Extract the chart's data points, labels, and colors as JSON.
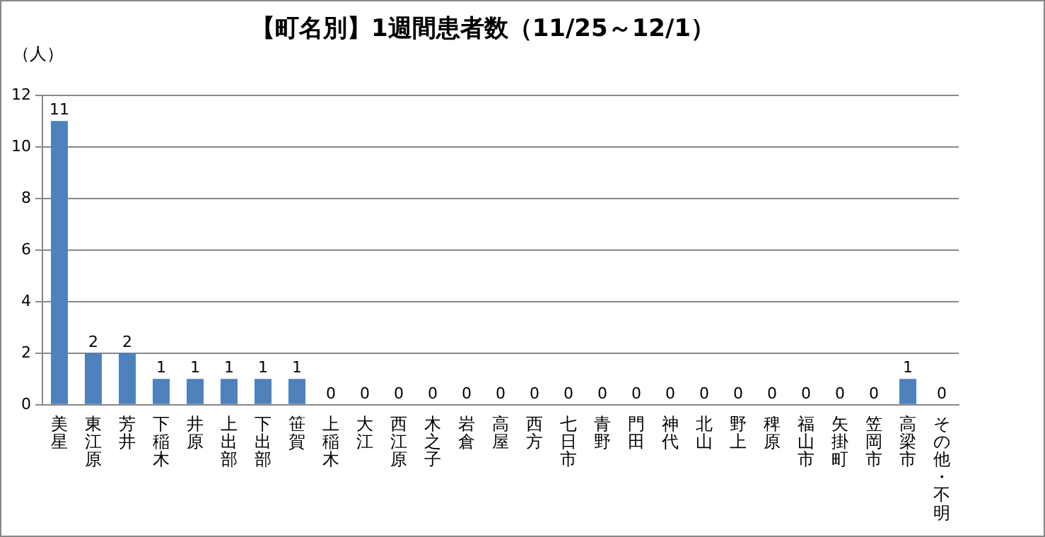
{
  "chart_data": {
    "type": "bar",
    "title": "【町名別】1週間患者数（11/25～12/1）",
    "ylabel": "（人）",
    "categories": [
      "美星",
      "東江原",
      "芳井",
      "下稲木",
      "井原",
      "上出部",
      "下出部",
      "笹賀",
      "上稲木",
      "大江",
      "西江原",
      "木之子",
      "岩倉",
      "高屋",
      "西方",
      "七日市",
      "青野",
      "門田",
      "神代",
      "北山",
      "野上",
      "稗原",
      "福山市",
      "矢掛町",
      "笠岡市",
      "高梁市",
      "その他・不明"
    ],
    "values": [
      11,
      2,
      2,
      1,
      1,
      1,
      1,
      1,
      0,
      0,
      0,
      0,
      0,
      0,
      0,
      0,
      0,
      0,
      0,
      0,
      0,
      0,
      0,
      0,
      0,
      1,
      0
    ],
    "color": "#4f81bd",
    "ylim": [
      0,
      12
    ],
    "yticks": [
      0,
      2,
      4,
      6,
      8,
      10,
      12
    ],
    "grid": "y",
    "data_labels": true,
    "legend": false
  }
}
